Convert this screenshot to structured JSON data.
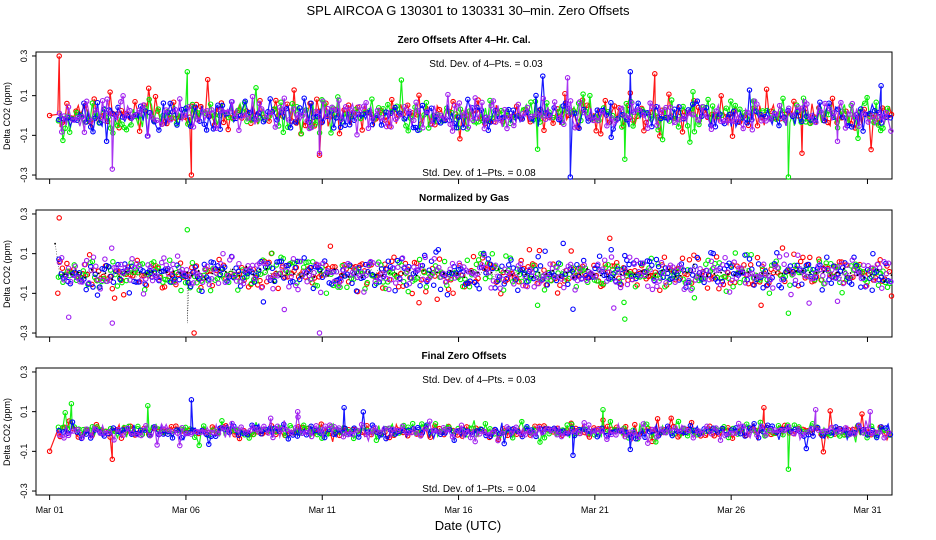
{
  "main_title": "SPL   AIRCOA G   130301 to 130331   30–min. Zero Offsets",
  "colors": {
    "red": "#ff0000",
    "green": "#00ee00",
    "blue": "#0000ff",
    "purple": "#a020f0",
    "black": "#000000"
  },
  "chart_data": [
    {
      "type": "line",
      "title": "Zero Offsets After 4–Hr. Cal.",
      "xlabel": "",
      "ylabel": "Delta CO2 (ppm)",
      "x_unit": "day of March 2013",
      "xlim": [
        0.5,
        31.9
      ],
      "ylim": [
        -0.32,
        0.32
      ],
      "yticks": [
        -0.3,
        -0.1,
        0.1,
        0.3
      ],
      "ytick_labels": [
        "-0.3",
        "-0.1",
        "0.1",
        "0.3"
      ],
      "xticks": [
        1,
        6,
        11,
        16,
        21,
        26,
        31
      ],
      "annotations": [
        "Std. Dev. of 4–Pts. =  0.03",
        "Std. Dev. of 1–Pts. =  0.08"
      ],
      "series": [
        {
          "name": "red",
          "color": "#ff0000",
          "spread": 0.08,
          "points": [
            [
              1.0,
              0.0
            ],
            [
              1.35,
              0.3
            ],
            [
              6.2,
              -0.3
            ],
            [
              10.9,
              -0.2
            ],
            [
              19.9,
              0.11
            ],
            [
              23.2,
              0.21
            ],
            [
              28.6,
              -0.19
            ]
          ]
        },
        {
          "name": "green",
          "color": "#00ee00",
          "spread": 0.08,
          "points": [
            [
              6.05,
              0.22
            ],
            [
              18.9,
              -0.17
            ],
            [
              22.1,
              -0.22
            ],
            [
              28.1,
              -0.31
            ],
            [
              24.6,
              0.12
            ]
          ]
        },
        {
          "name": "blue",
          "color": "#0000ff",
          "spread": 0.08,
          "points": [
            [
              20.1,
              -0.31
            ],
            [
              21.6,
              -0.11
            ],
            [
              22.3,
              0.22
            ],
            [
              31.5,
              0.15
            ]
          ]
        },
        {
          "name": "purple",
          "color": "#a020f0",
          "spread": 0.08,
          "points": [
            [
              3.3,
              -0.27
            ],
            [
              10.9,
              -0.19
            ],
            [
              20.0,
              0.19
            ],
            [
              29.9,
              -0.13
            ]
          ]
        }
      ]
    },
    {
      "type": "scatter",
      "title": "Normalized by Gas",
      "xlabel": "",
      "ylabel": "Delta CO2 (ppm)",
      "x_unit": "day of March 2013",
      "xlim": [
        0.5,
        31.9
      ],
      "ylim": [
        -0.32,
        0.32
      ],
      "yticks": [
        -0.3,
        -0.1,
        0.1,
        0.3
      ],
      "ytick_labels": [
        "-0.3",
        "-0.1",
        "0.1",
        "0.3"
      ],
      "xticks": [
        1,
        6,
        11,
        16,
        21,
        26,
        31
      ],
      "annotations": [],
      "series": [
        {
          "name": "red",
          "color": "#ff0000",
          "spread": 0.09,
          "points": [
            [
              1.35,
              0.28
            ],
            [
              6.3,
              -0.3
            ],
            [
              18.6,
              0.12
            ],
            [
              27.1,
              -0.16
            ]
          ]
        },
        {
          "name": "green",
          "color": "#00ee00",
          "spread": 0.09,
          "points": [
            [
              6.05,
              0.22
            ],
            [
              18.9,
              -0.16
            ],
            [
              22.1,
              -0.23
            ],
            [
              28.1,
              -0.2
            ]
          ]
        },
        {
          "name": "blue",
          "color": "#0000ff",
          "spread": 0.09,
          "points": [
            [
              20.2,
              -0.18
            ],
            [
              21.6,
              0.12
            ],
            [
              22.1,
              0.09
            ],
            [
              31.2,
              0.1
            ]
          ]
        },
        {
          "name": "purple",
          "color": "#a020f0",
          "spread": 0.09,
          "points": [
            [
              1.7,
              -0.22
            ],
            [
              3.3,
              -0.25
            ],
            [
              10.9,
              -0.3
            ],
            [
              29.9,
              -0.14
            ]
          ]
        },
        {
          "name": "black",
          "color": "#000000",
          "spread": 0.03,
          "points": [
            [
              1.2,
              0.15
            ],
            [
              6.05,
              -0.25
            ],
            [
              24.0,
              0.04
            ]
          ]
        }
      ]
    },
    {
      "type": "line",
      "title": "Final Zero Offsets",
      "xlabel": "Date (UTC)",
      "ylabel": "Delta CO2 (ppm)",
      "x_unit": "day of March 2013",
      "xlim": [
        0.5,
        31.9
      ],
      "ylim": [
        -0.32,
        0.32
      ],
      "yticks": [
        -0.3,
        -0.1,
        0.1,
        0.3
      ],
      "ytick_labels": [
        "-0.3",
        "-0.1",
        "0.1",
        "0.3"
      ],
      "xticks": [
        1,
        6,
        11,
        16,
        21,
        26,
        31
      ],
      "xtick_labels": [
        "Mar 01",
        "Mar 06",
        "Mar 11",
        "Mar 16",
        "Mar 21",
        "Mar 26",
        "Mar 31"
      ],
      "annotations": [
        "Std. Dev. of 4–Pts. =  0.03",
        "Std. Dev. of 1–Pts. =  0.04"
      ],
      "series": [
        {
          "name": "red",
          "color": "#ff0000",
          "spread": 0.04,
          "points": [
            [
              1.0,
              -0.1
            ],
            [
              3.3,
              -0.14
            ],
            [
              23.1,
              -0.05
            ],
            [
              27.2,
              0.12
            ]
          ]
        },
        {
          "name": "green",
          "color": "#00ee00",
          "spread": 0.04,
          "points": [
            [
              1.8,
              0.14
            ],
            [
              4.6,
              0.13
            ],
            [
              28.1,
              -0.19
            ],
            [
              21.3,
              0.11
            ]
          ]
        },
        {
          "name": "blue",
          "color": "#0000ff",
          "spread": 0.04,
          "points": [
            [
              6.2,
              0.16
            ],
            [
              11.8,
              0.12
            ],
            [
              20.2,
              -0.12
            ],
            [
              22.3,
              -0.09
            ]
          ]
        },
        {
          "name": "purple",
          "color": "#a020f0",
          "spread": 0.04,
          "points": [
            [
              10.1,
              0.1
            ],
            [
              29.1,
              0.11
            ],
            [
              31.1,
              0.1
            ]
          ]
        }
      ]
    }
  ]
}
